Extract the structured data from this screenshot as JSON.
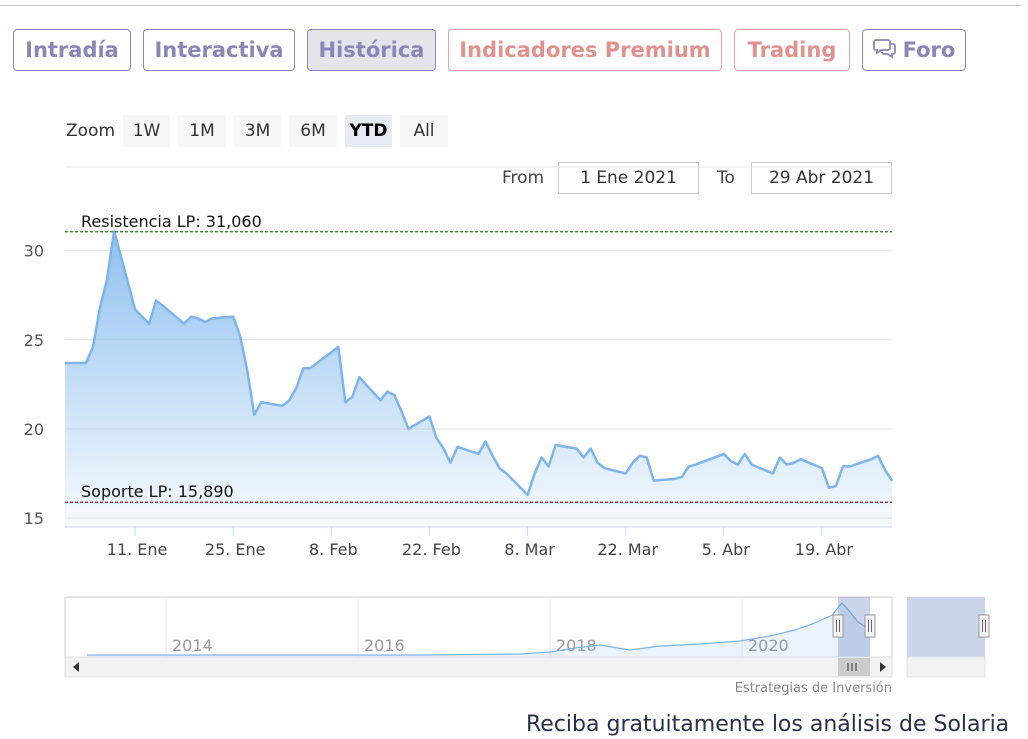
{
  "tabs": [
    {
      "label": "Intradía",
      "left": 0,
      "width": 118
    },
    {
      "label": "Interactiva",
      "width": 152
    },
    {
      "label": "Histórica",
      "width": 129,
      "active": true
    },
    {
      "label": "Indicadores Premium",
      "width": 274,
      "premium": true
    },
    {
      "label": "Trading",
      "width": 116,
      "premium": true
    },
    {
      "label": "Foro",
      "width": 104,
      "icon": "speech-bubbles-icon"
    }
  ],
  "zoom": {
    "label": "Zoom",
    "buttons": [
      "1W",
      "1M",
      "3M",
      "6M",
      "YTD",
      "All"
    ],
    "selected": "YTD"
  },
  "range": {
    "from_label": "From",
    "from_value": "1 Ene 2021",
    "to_label": "To",
    "to_value": "29 Abr 2021"
  },
  "chart_data": {
    "type": "area",
    "x_start": "2021-01-01",
    "x_end": "2021-04-29",
    "ylim": [
      14.5,
      32
    ],
    "yticks": [
      15,
      20,
      25,
      30
    ],
    "xticks": [
      {
        "label": "11. Ene",
        "date": "2021-01-11"
      },
      {
        "label": "25. Ene",
        "date": "2021-01-25"
      },
      {
        "label": "8. Feb",
        "date": "2021-02-08"
      },
      {
        "label": "22. Feb",
        "date": "2021-02-22"
      },
      {
        "label": "8. Mar",
        "date": "2021-03-08"
      },
      {
        "label": "22. Mar",
        "date": "2021-03-22"
      },
      {
        "label": "5. Abr",
        "date": "2021-04-05"
      },
      {
        "label": "19. Abr",
        "date": "2021-04-19"
      }
    ],
    "points": [
      [
        "2021-01-04",
        23.7
      ],
      [
        "2021-01-05",
        24.6
      ],
      [
        "2021-01-06",
        26.8
      ],
      [
        "2021-01-07",
        28.4
      ],
      [
        "2021-01-08",
        31.1
      ],
      [
        "2021-01-11",
        26.7
      ],
      [
        "2021-01-12",
        26.3
      ],
      [
        "2021-01-13",
        25.9
      ],
      [
        "2021-01-14",
        27.2
      ],
      [
        "2021-01-15",
        26.9
      ],
      [
        "2021-01-18",
        25.9
      ],
      [
        "2021-01-19",
        26.3
      ],
      [
        "2021-01-20",
        26.2
      ],
      [
        "2021-01-21",
        26.0
      ],
      [
        "2021-01-22",
        26.2
      ],
      [
        "2021-01-25",
        26.3
      ],
      [
        "2021-01-26",
        25.2
      ],
      [
        "2021-01-27",
        23.3
      ],
      [
        "2021-01-28",
        20.8
      ],
      [
        "2021-01-29",
        21.5
      ],
      [
        "2021-02-01",
        21.3
      ],
      [
        "2021-02-02",
        21.6
      ],
      [
        "2021-02-03",
        22.3
      ],
      [
        "2021-02-04",
        23.4
      ],
      [
        "2021-02-05",
        23.4
      ],
      [
        "2021-02-08",
        24.3
      ],
      [
        "2021-02-09",
        24.6
      ],
      [
        "2021-02-10",
        21.5
      ],
      [
        "2021-02-11",
        21.8
      ],
      [
        "2021-02-12",
        22.9
      ],
      [
        "2021-02-15",
        21.6
      ],
      [
        "2021-02-16",
        22.1
      ],
      [
        "2021-02-17",
        21.9
      ],
      [
        "2021-02-18",
        21.0
      ],
      [
        "2021-02-19",
        20.0
      ],
      [
        "2021-02-22",
        20.7
      ],
      [
        "2021-02-23",
        19.5
      ],
      [
        "2021-02-24",
        18.9
      ],
      [
        "2021-02-25",
        18.1
      ],
      [
        "2021-02-26",
        19.0
      ],
      [
        "2021-03-01",
        18.6
      ],
      [
        "2021-03-02",
        19.3
      ],
      [
        "2021-03-03",
        18.5
      ],
      [
        "2021-03-04",
        17.8
      ],
      [
        "2021-03-05",
        17.5
      ],
      [
        "2021-03-08",
        16.3
      ],
      [
        "2021-03-09",
        17.5
      ],
      [
        "2021-03-10",
        18.4
      ],
      [
        "2021-03-11",
        17.9
      ],
      [
        "2021-03-12",
        19.1
      ],
      [
        "2021-03-15",
        18.9
      ],
      [
        "2021-03-16",
        18.4
      ],
      [
        "2021-03-17",
        18.9
      ],
      [
        "2021-03-18",
        18.1
      ],
      [
        "2021-03-19",
        17.8
      ],
      [
        "2021-03-22",
        17.5
      ],
      [
        "2021-03-23",
        18.1
      ],
      [
        "2021-03-24",
        18.5
      ],
      [
        "2021-03-25",
        18.4
      ],
      [
        "2021-03-26",
        17.1
      ],
      [
        "2021-03-29",
        17.2
      ],
      [
        "2021-03-30",
        17.3
      ],
      [
        "2021-03-31",
        17.9
      ],
      [
        "2021-04-01",
        18.0
      ],
      [
        "2021-04-05",
        18.6
      ],
      [
        "2021-04-06",
        18.2
      ],
      [
        "2021-04-07",
        18.0
      ],
      [
        "2021-04-08",
        18.6
      ],
      [
        "2021-04-09",
        18.0
      ],
      [
        "2021-04-12",
        17.5
      ],
      [
        "2021-04-13",
        18.4
      ],
      [
        "2021-04-14",
        18.0
      ],
      [
        "2021-04-15",
        18.1
      ],
      [
        "2021-04-16",
        18.3
      ],
      [
        "2021-04-19",
        17.8
      ],
      [
        "2021-04-20",
        16.7
      ],
      [
        "2021-04-21",
        16.8
      ],
      [
        "2021-04-22",
        17.9
      ],
      [
        "2021-04-23",
        17.9
      ],
      [
        "2021-04-26",
        18.3
      ],
      [
        "2021-04-27",
        18.5
      ],
      [
        "2021-04-28",
        17.7
      ],
      [
        "2021-04-29",
        17.1
      ]
    ],
    "annotations": [
      {
        "label": "Resistencia LP: 31,060",
        "value": 31.06,
        "color": "#2e6b2e"
      },
      {
        "label": "Soporte LP: 15,890",
        "value": 15.89,
        "color": "#8b1a1a"
      }
    ],
    "navigator": {
      "year_labels": [
        "2014",
        "2016",
        "2018",
        "2020"
      ]
    },
    "grid": true,
    "line_color": "#7cb5ec"
  },
  "credit": "Estrategias de Inversión",
  "promo": "Reciba gratuitamente los análisis de Solaria"
}
